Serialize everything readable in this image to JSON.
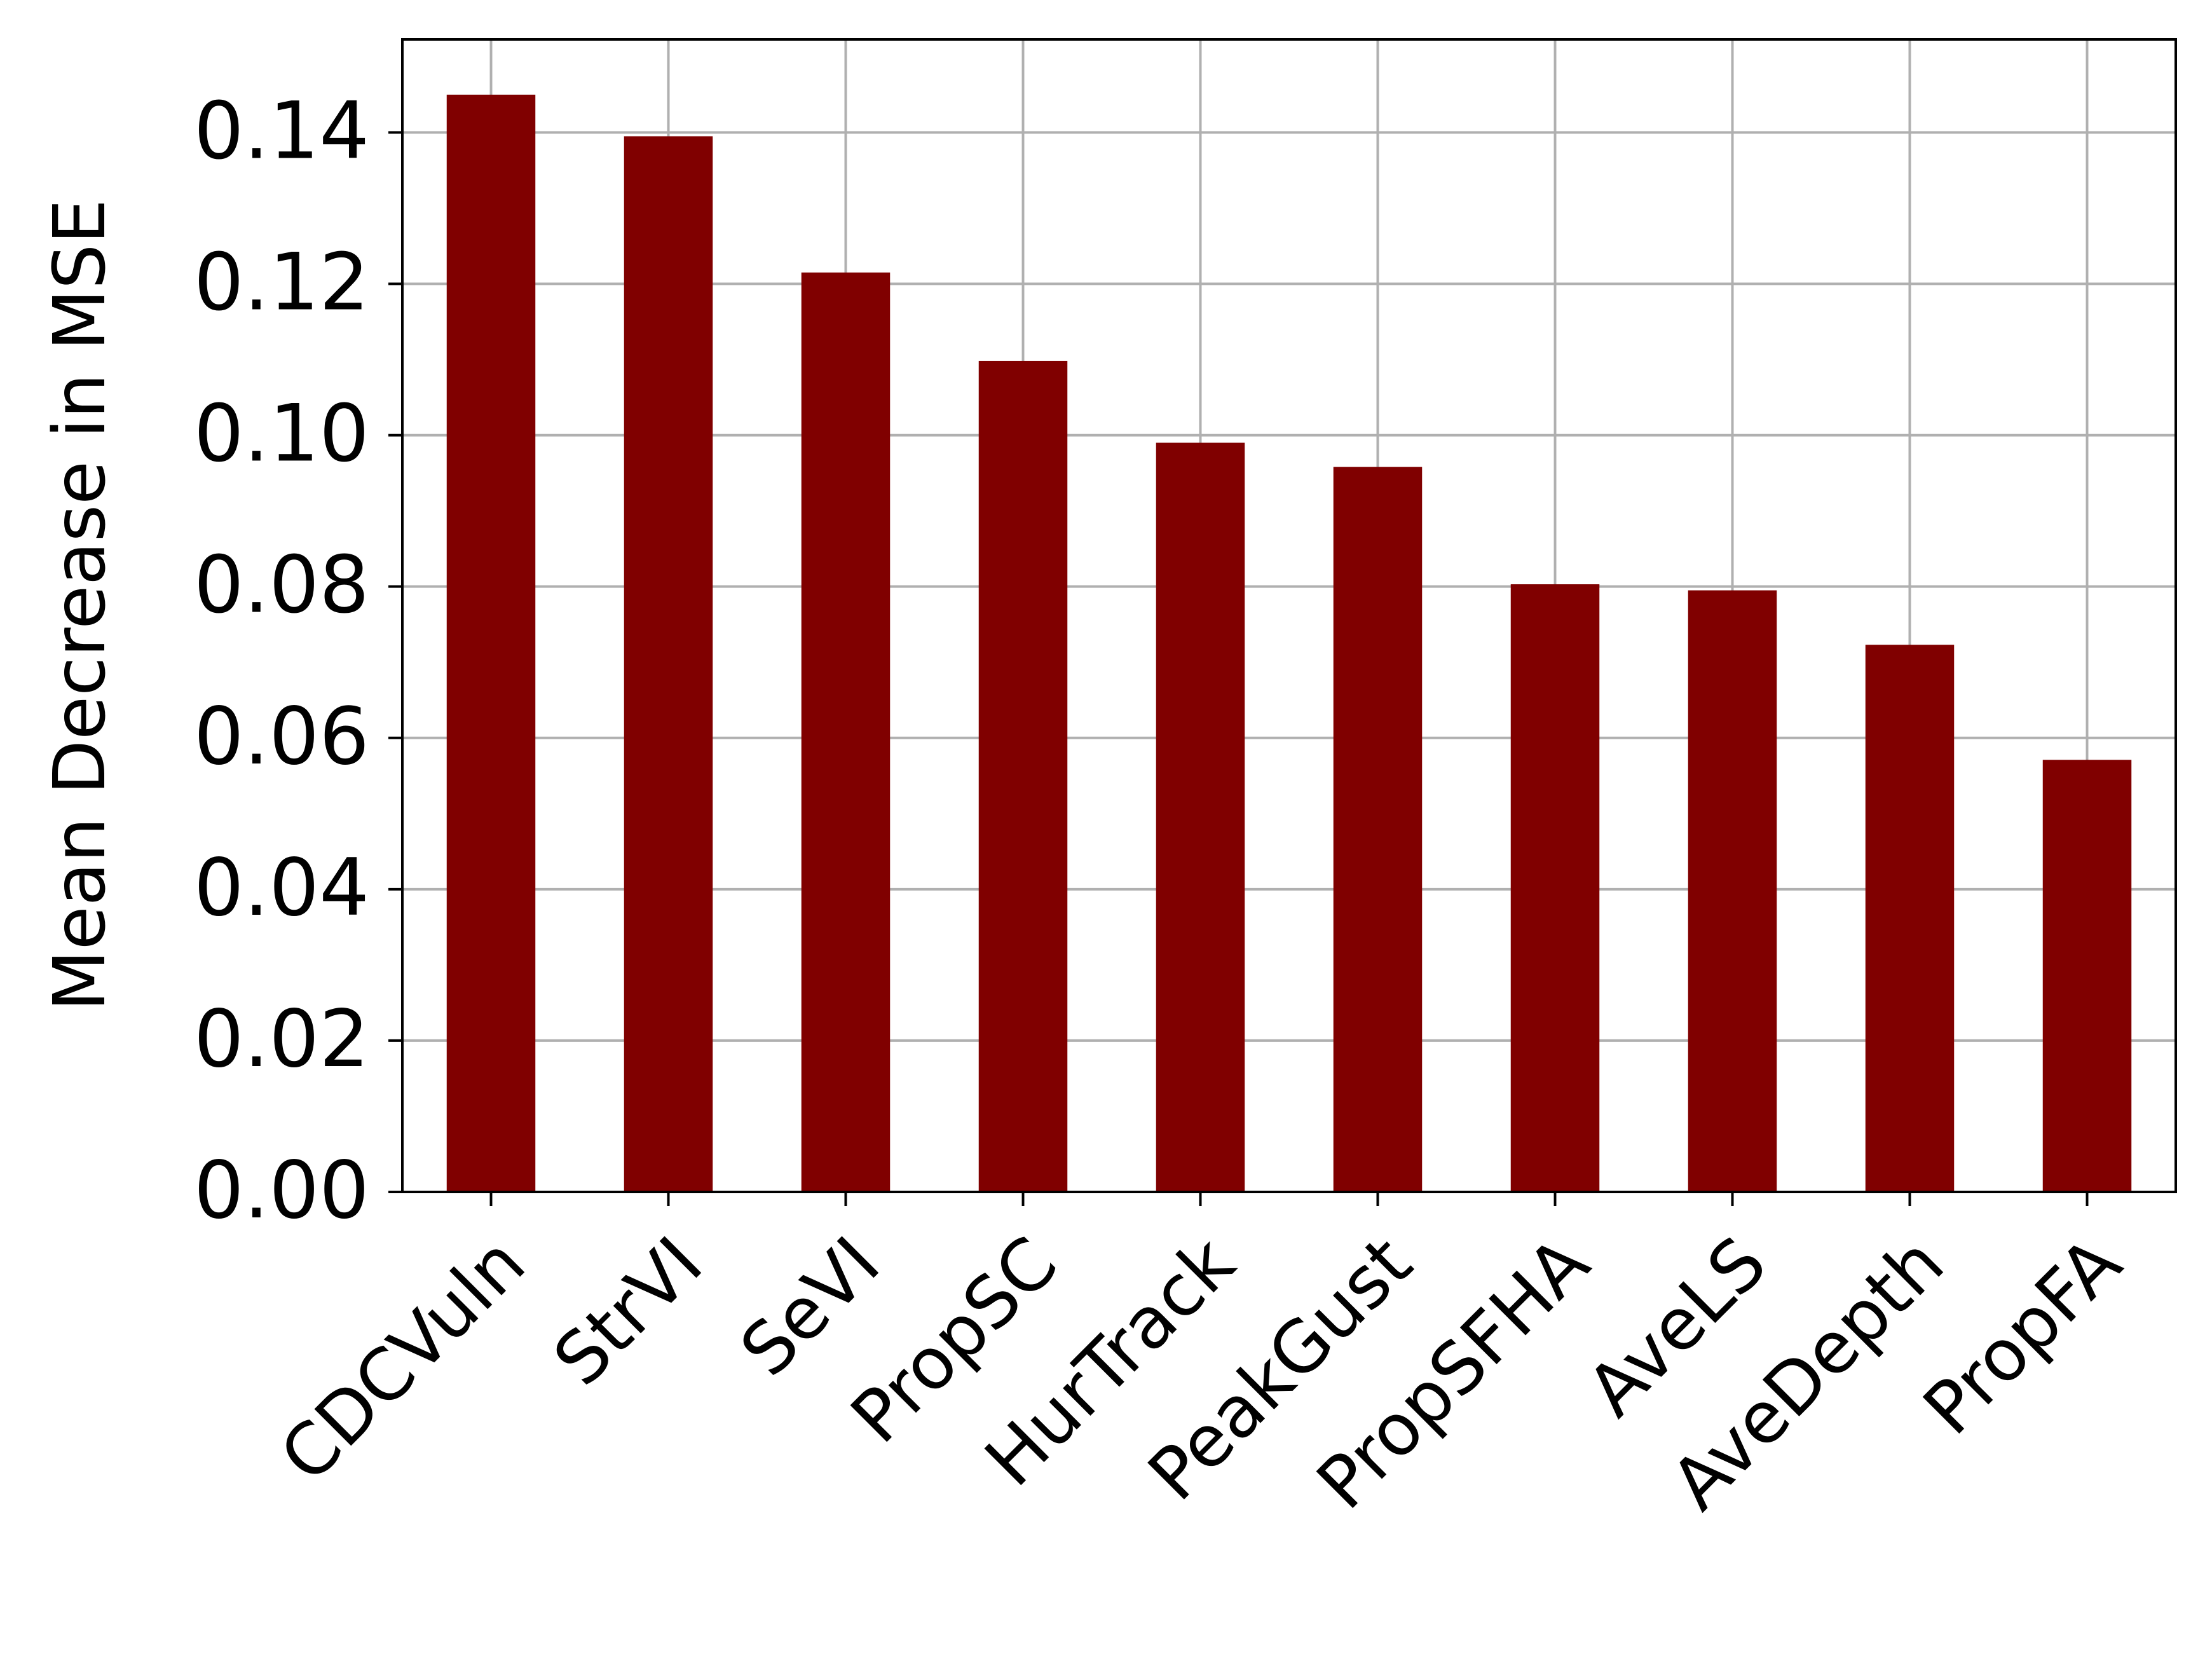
{
  "chart_data": {
    "type": "bar",
    "title": "",
    "xlabel": "",
    "ylabel": "Mean Decrease in MSE",
    "categories": [
      "CDCVuln",
      "StrVI",
      "SeVI",
      "PropSC",
      "HurTrack",
      "PeakGust",
      "PropSFHA",
      "AveLS",
      "AveDepth",
      "PropFA"
    ],
    "values": [
      0.145,
      0.1395,
      0.1215,
      0.1098,
      0.099,
      0.0958,
      0.0803,
      0.0795,
      0.0723,
      0.0571
    ],
    "ylim": [
      0,
      0.1523
    ],
    "yticks": [
      "0.00",
      "0.02",
      "0.04",
      "0.06",
      "0.08",
      "0.10",
      "0.12",
      "0.14"
    ],
    "ytick_values": [
      0,
      0.02,
      0.04,
      0.06,
      0.08,
      0.1,
      0.12,
      0.14
    ],
    "grid": true,
    "bar_color": "#800000",
    "grid_color": "#b0b0b0"
  }
}
